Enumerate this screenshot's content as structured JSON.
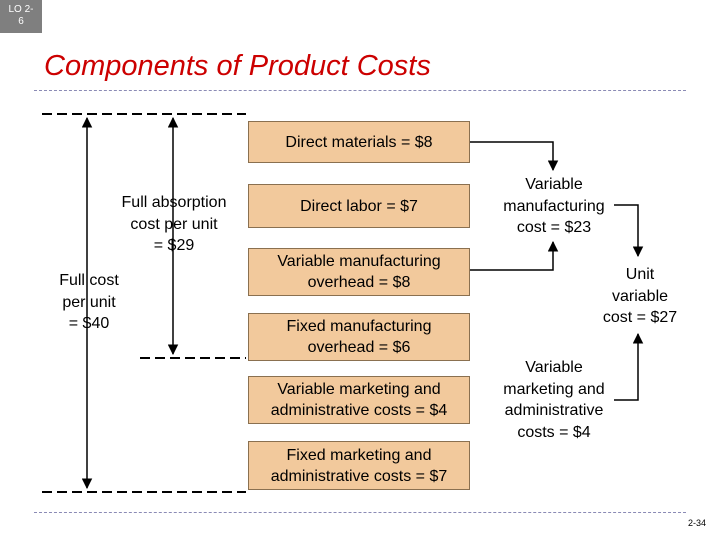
{
  "badge": "LO 2-\n6",
  "title": "Components of Product Costs",
  "boxes": {
    "direct_materials": "Direct materials = $8",
    "direct_labor": "Direct labor = $7",
    "variable_mfg_overhead": "Variable manufacturing\noverhead = $8",
    "fixed_mfg_overhead": "Fixed manufacturing\noverhead = $6",
    "variable_mkt_admin": "Variable marketing and\nadministrative costs = $4",
    "fixed_mkt_admin": "Fixed marketing and\nadministrative costs = $7"
  },
  "labels": {
    "full_absorption": "Full absorption\ncost per unit\n= $29",
    "full_cost": "Full cost\nper unit\n= $40",
    "variable_manufacturing": "Variable\nmanufacturing\ncost = $23",
    "unit_variable": "Unit\nvariable\ncost = $27",
    "variable_marketing": "Variable\nmarketing and\nadministrative\ncosts = $4"
  },
  "page_number": "2-34"
}
